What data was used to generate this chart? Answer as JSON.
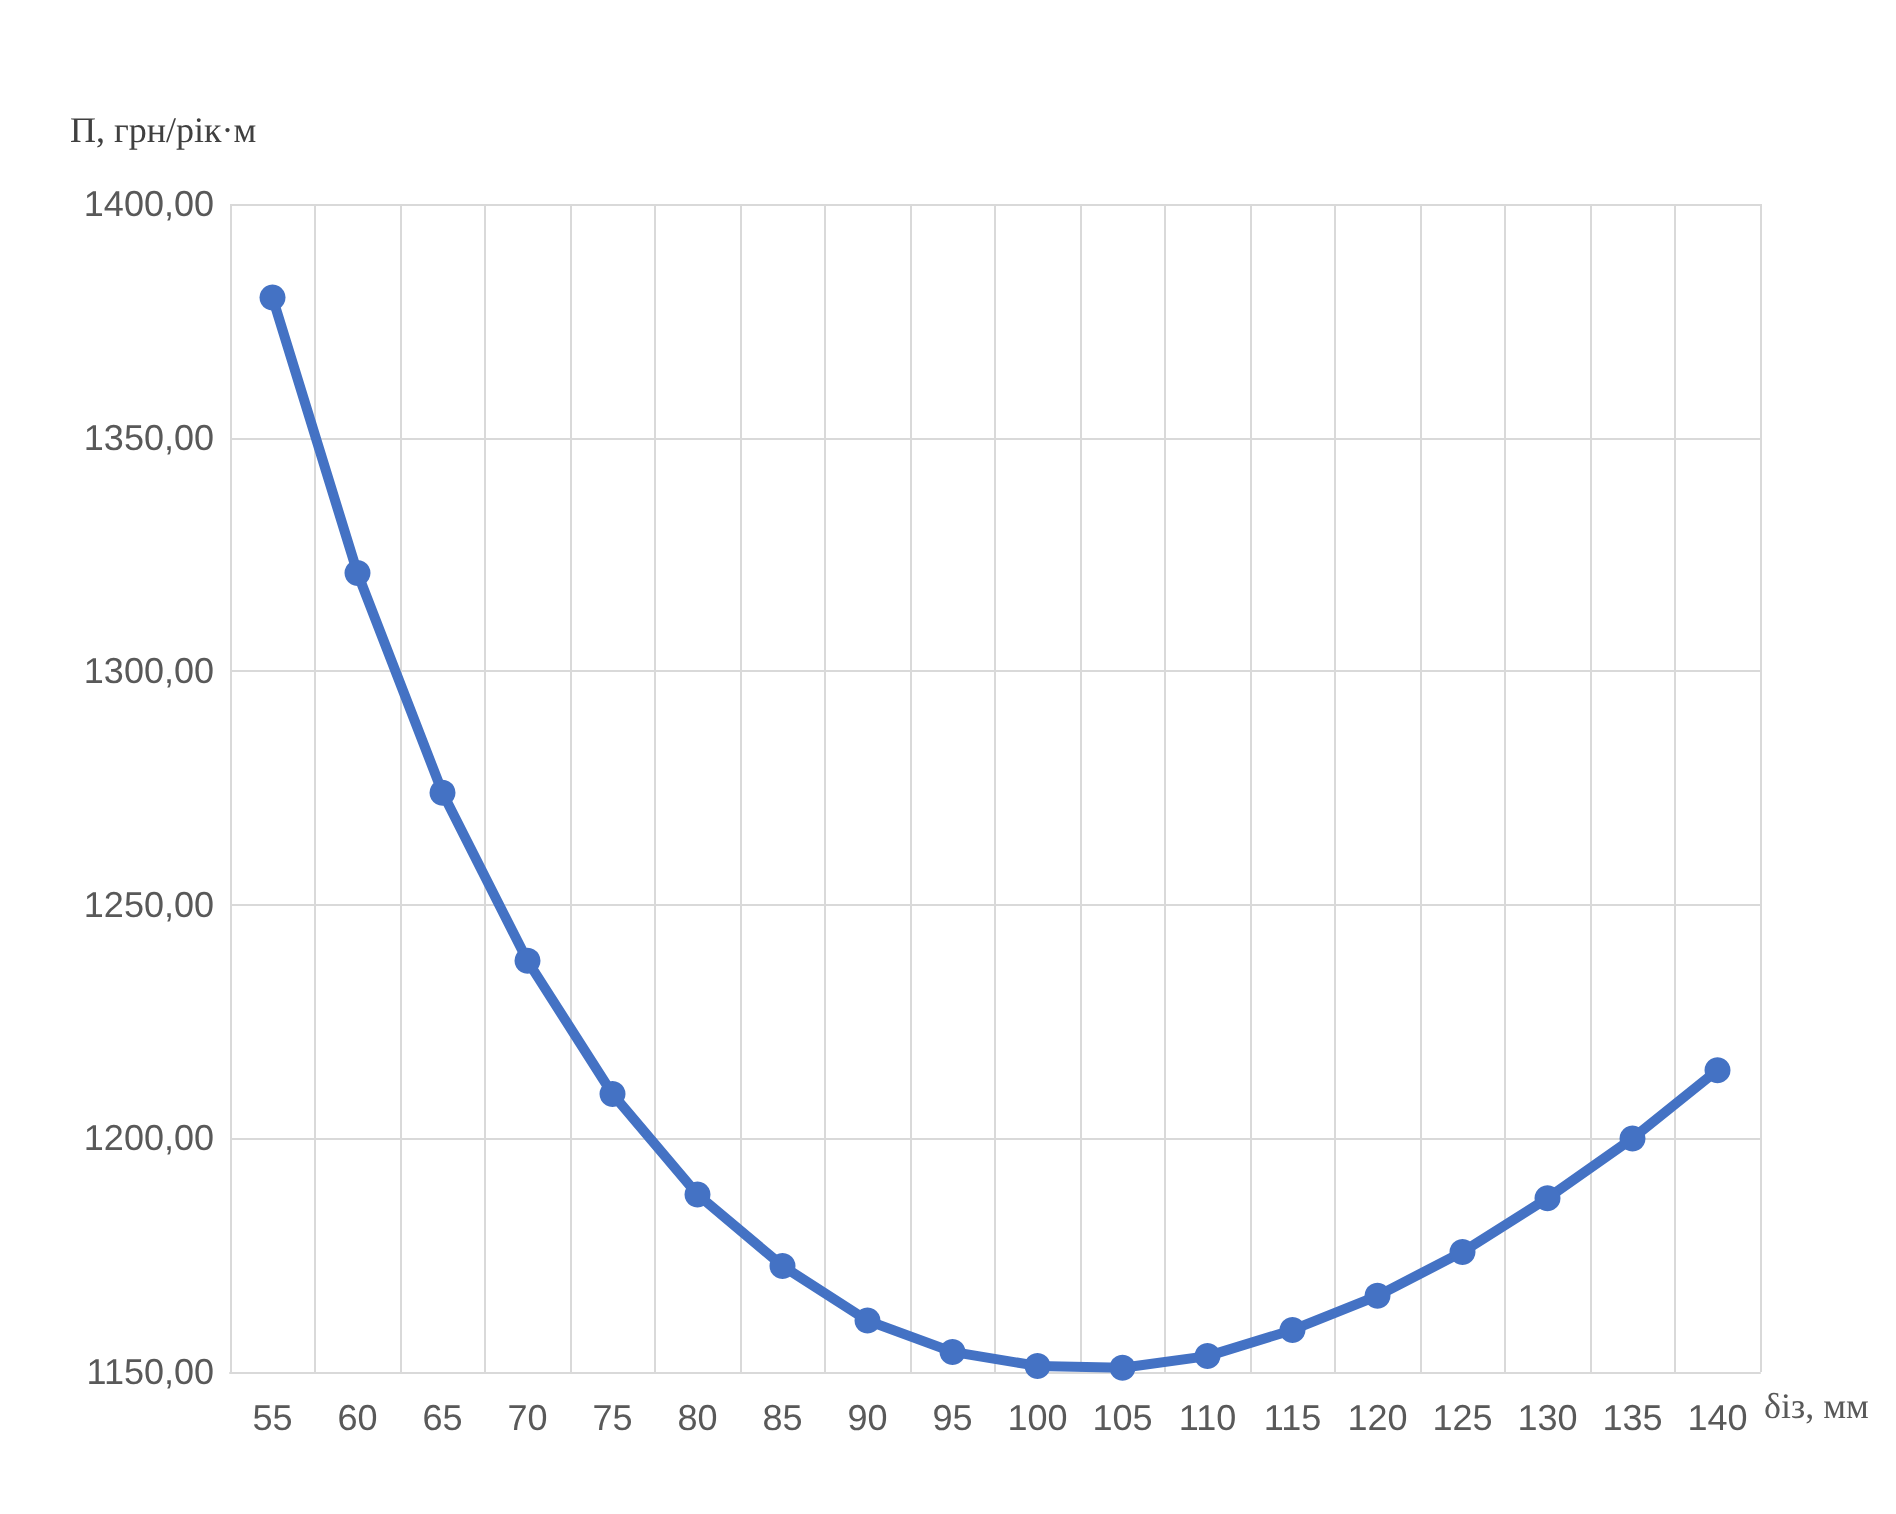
{
  "chart_data": {
    "type": "line",
    "xlabel": "δіз, мм",
    "ylabel": "П, грн/рік·м",
    "categories": [
      "55",
      "60",
      "65",
      "70",
      "75",
      "80",
      "85",
      "90",
      "95",
      "100",
      "105",
      "110",
      "115",
      "120",
      "125",
      "130",
      "135",
      "140"
    ],
    "series": [
      {
        "color": "#4472c4",
        "values": [
          1380,
          1321,
          1274,
          1238,
          1209.5,
          1188,
          1172.7,
          1161,
          1154.3,
          1151.3,
          1150.9,
          1153.4,
          1159,
          1166.3,
          1175.7,
          1187.2,
          1200,
          1214.6
        ]
      }
    ],
    "ylim": [
      1150,
      1400
    ],
    "yticks": [
      {
        "value": 1150,
        "label": "1150,00"
      },
      {
        "value": 1200,
        "label": "1200,00"
      },
      {
        "value": 1250,
        "label": "1250,00"
      },
      {
        "value": 1300,
        "label": "1300,00"
      },
      {
        "value": 1350,
        "label": "1350,00"
      },
      {
        "value": 1400,
        "label": "1400,00"
      }
    ],
    "grid": true,
    "marker": "circle",
    "line_style": "solid"
  }
}
